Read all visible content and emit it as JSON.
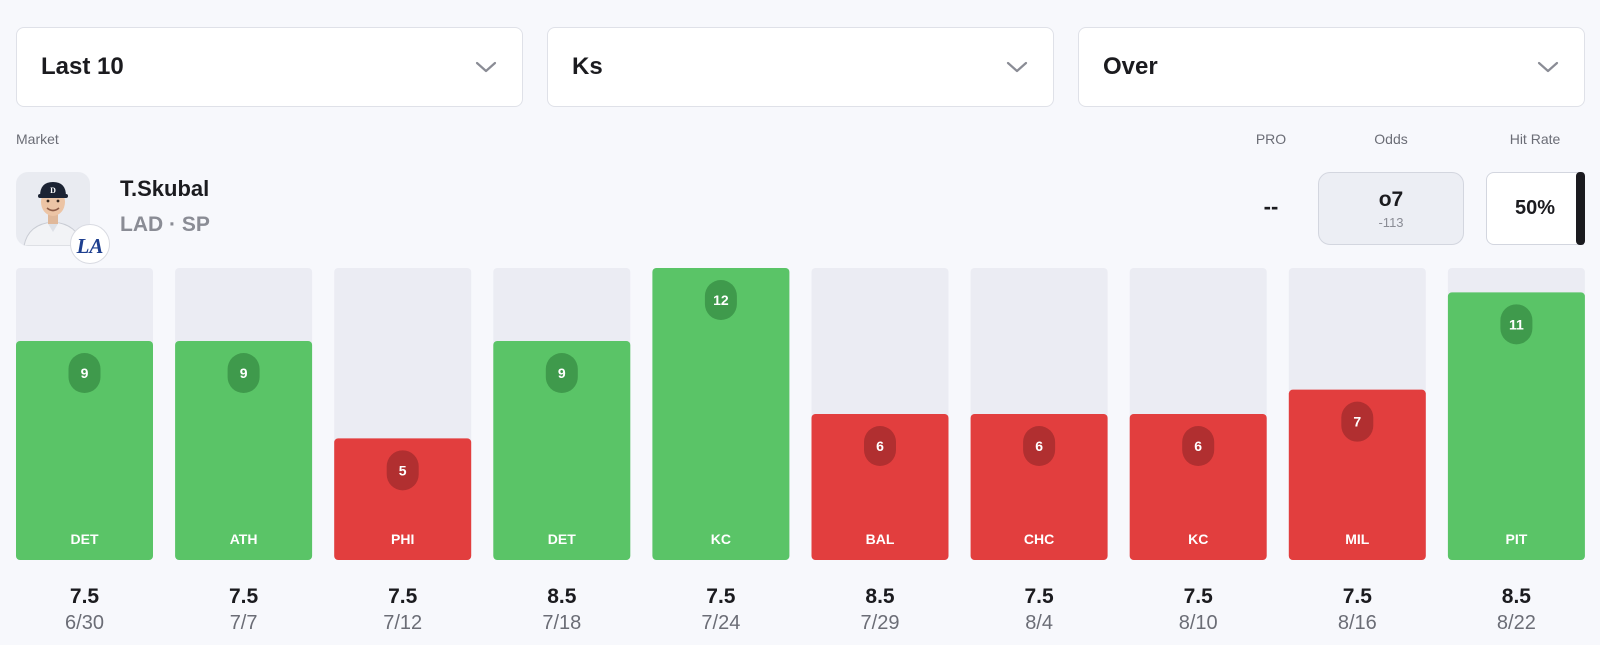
{
  "filters": {
    "range": "Last 10",
    "stat": "Ks",
    "side": "Over"
  },
  "labels": {
    "market": "Market",
    "pro": "PRO",
    "odds": "Odds",
    "hit_rate": "Hit Rate"
  },
  "player": {
    "name": "T.Skubal",
    "team_pos": "LAD · SP",
    "team_logo": "LA"
  },
  "pro_value": "--",
  "odds": {
    "line": "o7",
    "price": "-113"
  },
  "hit_rate": "50%",
  "colors": {
    "hit": "#5ac467",
    "miss": "#e23e3e",
    "track": "#ebecf3",
    "hit_pill": "#3f9a4c",
    "miss_pill": "#b12f30"
  },
  "chart_data": {
    "type": "bar",
    "ylim": [
      0,
      12
    ],
    "categories": [
      "DET",
      "ATH",
      "PHI",
      "DET",
      "KC",
      "BAL",
      "CHC",
      "KC",
      "MIL",
      "PIT"
    ],
    "values": [
      9,
      9,
      5,
      9,
      12,
      6,
      6,
      6,
      7,
      11
    ],
    "lines": [
      "7.5",
      "7.5",
      "7.5",
      "8.5",
      "7.5",
      "8.5",
      "7.5",
      "7.5",
      "7.5",
      "8.5"
    ],
    "dates": [
      "6/30",
      "7/7",
      "7/12",
      "7/18",
      "7/24",
      "7/29",
      "8/4",
      "8/10",
      "8/16",
      "8/22"
    ],
    "results": [
      "hit",
      "hit",
      "miss",
      "hit",
      "hit",
      "miss",
      "miss",
      "miss",
      "miss",
      "hit"
    ]
  }
}
